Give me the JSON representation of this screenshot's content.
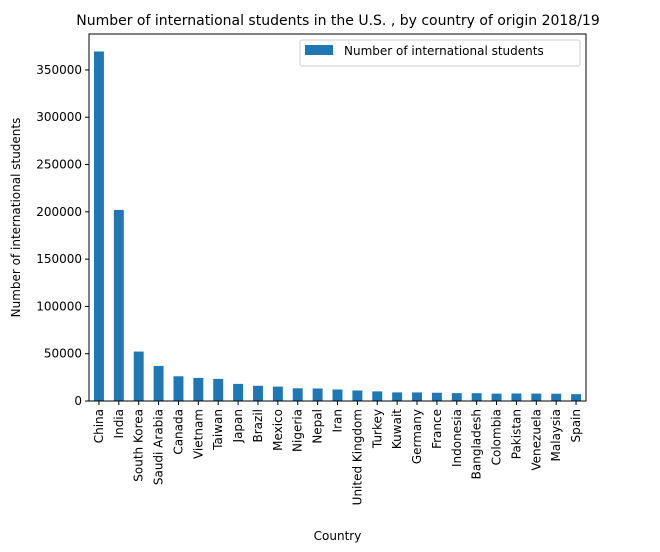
{
  "chart_data": {
    "type": "bar",
    "title": "Number of international students in the U.S. , by country of origin 2018/19",
    "xlabel": "Country",
    "ylabel": "Number of international students",
    "ylim": [
      0,
      388000
    ],
    "yticks": [
      0,
      50000,
      100000,
      150000,
      200000,
      250000,
      300000,
      350000
    ],
    "legend_position": "top-right",
    "bar_color": "#1f77b4",
    "categories": [
      "China",
      "India",
      "South Korea",
      "Saudi Arabia",
      "Canada",
      "Vietnam",
      "Taiwan",
      "Japan",
      "Brazil",
      "Mexico",
      "Nigeria",
      "Nepal",
      "Iran",
      "United Kingdom",
      "Turkey",
      "Kuwait",
      "Germany",
      "France",
      "Indonesia",
      "Bangladesh",
      "Colombia",
      "Pakistan",
      "Venezuela",
      "Malaysia",
      "Spain"
    ],
    "series": [
      {
        "name": "Number of international students",
        "values": [
          369548,
          202014,
          52250,
          37080,
          26122,
          24392,
          23369,
          18105,
          16059,
          15229,
          13423,
          13229,
          12142,
          11146,
          10159,
          9106,
          9052,
          8716,
          8356,
          8249,
          7787,
          7957,
          7863,
          7721,
          7228
        ]
      }
    ]
  }
}
